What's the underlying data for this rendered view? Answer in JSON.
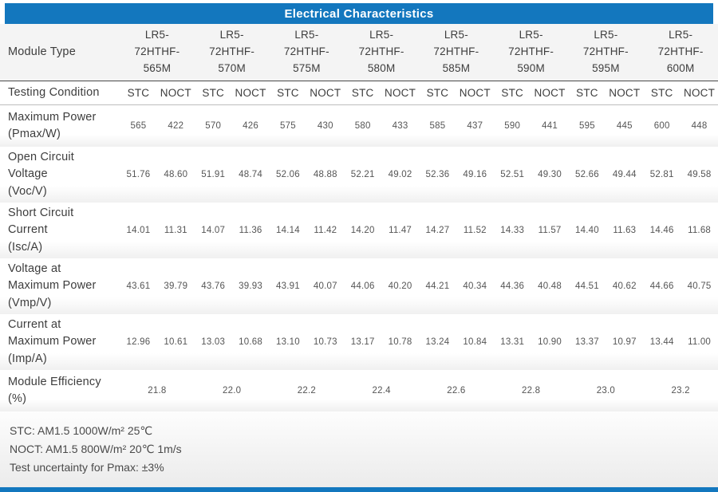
{
  "title": "Electrical Characteristics",
  "colors": {
    "accent": "#1377be",
    "title_text": "#ffffff"
  },
  "table": {
    "module_type_label": "Module Type",
    "testing_condition_label": "Testing Condition",
    "modules": [
      "LR5-72HTHF-565M",
      "LR5-72HTHF-570M",
      "LR5-72HTHF-575M",
      "LR5-72HTHF-580M",
      "LR5-72HTHF-585M",
      "LR5-72HTHF-590M",
      "LR5-72HTHF-595M",
      "LR5-72HTHF-600M"
    ],
    "condition_headers": [
      "STC",
      "NOCT"
    ],
    "rows": [
      {
        "label_lines": [
          "Maximum Power",
          "(Pmax/W)"
        ],
        "values": [
          [
            "565",
            "422"
          ],
          [
            "570",
            "426"
          ],
          [
            "575",
            "430"
          ],
          [
            "580",
            "433"
          ],
          [
            "585",
            "437"
          ],
          [
            "590",
            "441"
          ],
          [
            "595",
            "445"
          ],
          [
            "600",
            "448"
          ]
        ]
      },
      {
        "label_lines": [
          "Open Circuit",
          "Voltage",
          "(Voc/V)"
        ],
        "values": [
          [
            "51.76",
            "48.60"
          ],
          [
            "51.91",
            "48.74"
          ],
          [
            "52.06",
            "48.88"
          ],
          [
            "52.21",
            "49.02"
          ],
          [
            "52.36",
            "49.16"
          ],
          [
            "52.51",
            "49.30"
          ],
          [
            "52.66",
            "49.44"
          ],
          [
            "52.81",
            "49.58"
          ]
        ]
      },
      {
        "label_lines": [
          "Short Circuit",
          "Current",
          "(Isc/A)"
        ],
        "values": [
          [
            "14.01",
            "11.31"
          ],
          [
            "14.07",
            "11.36"
          ],
          [
            "14.14",
            "11.42"
          ],
          [
            "14.20",
            "11.47"
          ],
          [
            "14.27",
            "11.52"
          ],
          [
            "14.33",
            "11.57"
          ],
          [
            "14.40",
            "11.63"
          ],
          [
            "14.46",
            "11.68"
          ]
        ]
      },
      {
        "label_lines": [
          "Voltage at",
          "Maximum Power",
          "(Vmp/V)"
        ],
        "values": [
          [
            "43.61",
            "39.79"
          ],
          [
            "43.76",
            "39.93"
          ],
          [
            "43.91",
            "40.07"
          ],
          [
            "44.06",
            "40.20"
          ],
          [
            "44.21",
            "40.34"
          ],
          [
            "44.36",
            "40.48"
          ],
          [
            "44.51",
            "40.62"
          ],
          [
            "44.66",
            "40.75"
          ]
        ]
      },
      {
        "label_lines": [
          "Current at",
          "Maximum Power",
          "(Imp/A)"
        ],
        "values": [
          [
            "12.96",
            "10.61"
          ],
          [
            "13.03",
            "10.68"
          ],
          [
            "13.10",
            "10.73"
          ],
          [
            "13.17",
            "10.78"
          ],
          [
            "13.24",
            "10.84"
          ],
          [
            "13.31",
            "10.90"
          ],
          [
            "13.37",
            "10.97"
          ],
          [
            "13.44",
            "11.00"
          ]
        ]
      },
      {
        "label_lines": [
          "Module Efficiency",
          "(%)"
        ],
        "span_pair": true,
        "values": [
          "21.8",
          "22.0",
          "22.2",
          "22.4",
          "22.6",
          "22.8",
          "23.0",
          "23.2"
        ]
      }
    ]
  },
  "notes": [
    "STC: AM1.5 1000W/m² 25℃",
    "NOCT: AM1.5 800W/m² 20℃ 1m/s",
    "Test uncertainty for Pmax: ±3%"
  ]
}
